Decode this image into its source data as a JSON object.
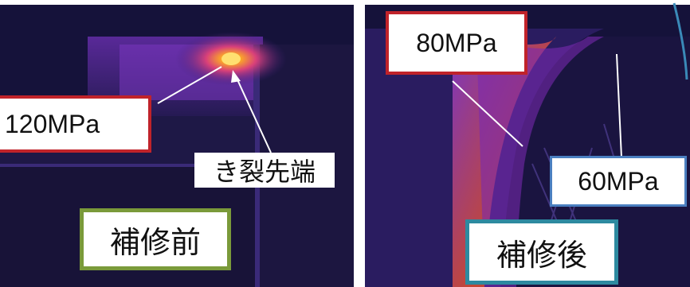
{
  "left_image": {
    "stress_label": "120MPa",
    "crack_tip_label": "き裂先端",
    "condition_label": "補修前"
  },
  "right_image": {
    "stress_label_upper": "80MPa",
    "stress_label_lower": "60MPa",
    "condition_label": "補修後"
  },
  "colors": {
    "background": "#14122e",
    "hot": "#ff8a1a",
    "warm": "#d04aa0",
    "red_frame": "#c0232a",
    "green_frame": "#7a9a3a",
    "blue_frame": "#4a7fc0",
    "teal_frame": "#2d8aa0"
  }
}
